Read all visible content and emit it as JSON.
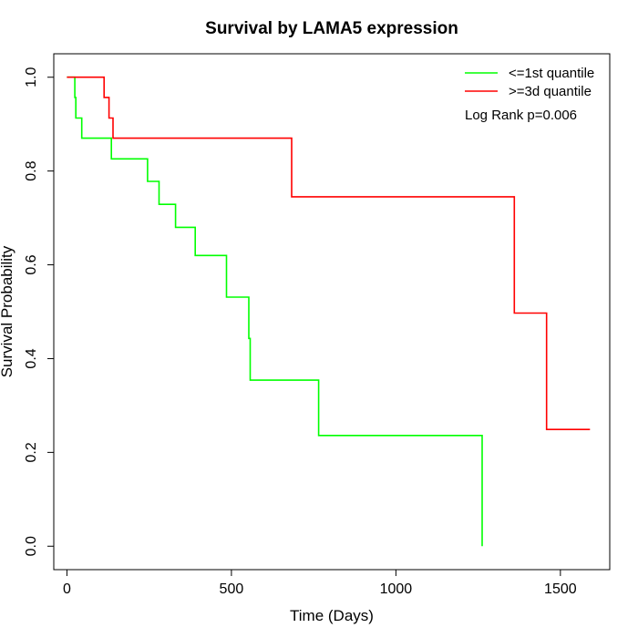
{
  "chart_data": {
    "type": "line",
    "title": "Survival by LAMA5 expression",
    "xlabel": "Time (Days)",
    "ylabel": "Survival Probability",
    "xlim": [
      -40,
      1650
    ],
    "ylim": [
      -0.05,
      1.05
    ],
    "xticks": [
      0,
      500,
      1000,
      1500
    ],
    "yticks": [
      0.0,
      0.2,
      0.4,
      0.6,
      0.8,
      1.0
    ],
    "xtick_labels": [
      "0",
      "500",
      "1000",
      "1500"
    ],
    "ytick_labels": [
      "0.0",
      "0.2",
      "0.4",
      "0.6",
      "0.8",
      "1.0"
    ],
    "grid": false,
    "legend_position": "top-right",
    "annotation": "Log Rank p=0.006",
    "series": [
      {
        "name": "<=1st quantile",
        "color": "#00ff00",
        "step_points": [
          [
            0,
            1.0
          ],
          [
            24,
            1.0
          ],
          [
            24,
            0.957
          ],
          [
            27,
            0.957
          ],
          [
            27,
            0.913
          ],
          [
            45,
            0.913
          ],
          [
            45,
            0.87
          ],
          [
            135,
            0.87
          ],
          [
            135,
            0.826
          ],
          [
            245,
            0.826
          ],
          [
            245,
            0.778
          ],
          [
            280,
            0.778
          ],
          [
            280,
            0.729
          ],
          [
            330,
            0.729
          ],
          [
            330,
            0.68
          ],
          [
            390,
            0.68
          ],
          [
            390,
            0.62
          ],
          [
            485,
            0.62
          ],
          [
            485,
            0.531
          ],
          [
            553,
            0.531
          ],
          [
            553,
            0.443
          ],
          [
            557,
            0.443
          ],
          [
            557,
            0.354
          ],
          [
            765,
            0.354
          ],
          [
            765,
            0.236
          ],
          [
            1262,
            0.236
          ],
          [
            1262,
            0.0
          ]
        ]
      },
      {
        "name": ">=3d quantile",
        "color": "#ff0000",
        "step_points": [
          [
            0,
            1.0
          ],
          [
            113,
            1.0
          ],
          [
            113,
            0.957
          ],
          [
            128,
            0.957
          ],
          [
            128,
            0.913
          ],
          [
            140,
            0.913
          ],
          [
            140,
            0.87
          ],
          [
            683,
            0.87
          ],
          [
            683,
            0.745
          ],
          [
            1360,
            0.745
          ],
          [
            1360,
            0.497
          ],
          [
            1458,
            0.497
          ],
          [
            1458,
            0.249
          ],
          [
            1590,
            0.249
          ]
        ]
      }
    ]
  }
}
